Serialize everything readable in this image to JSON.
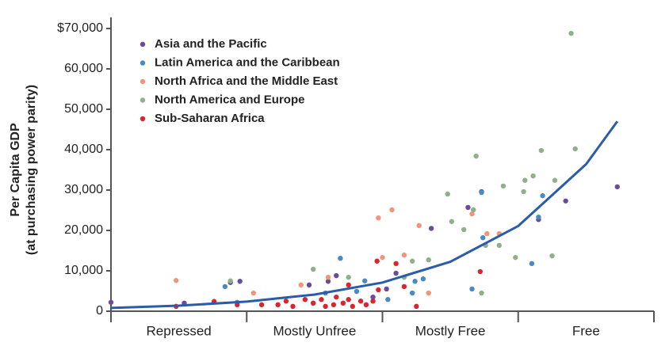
{
  "chart_data": {
    "type": "scatter",
    "y_label": [
      "Per Capita GDP",
      "(at purchasing power parity)"
    ],
    "categories": [
      "Repressed",
      "Mostly Unfree",
      "Mostly Free",
      "Free"
    ],
    "xlim": [
      0,
      4
    ],
    "ylim": [
      0,
      70000
    ],
    "yticks": [
      0,
      {
        "value": 10000,
        "label": "10,000"
      },
      {
        "value": 20000,
        "label": "20,000"
      },
      {
        "value": 30000,
        "label": "30,000"
      },
      {
        "value": 40000,
        "label": "40,000"
      },
      {
        "value": 50000,
        "label": "50,000"
      },
      {
        "value": 60000,
        "label": "60,000"
      },
      {
        "value": 70000,
        "label": "$70,000"
      }
    ],
    "series": [
      {
        "name": "Asia and the Pacific",
        "color": "#6a4c9c",
        "x": [
          0.0,
          0.54,
          0.95,
          0.88,
          1.6,
          1.93,
          1.66,
          2.36,
          2.63,
          2.73,
          3.15,
          3.35,
          3.73,
          2.03,
          2.1,
          1.46
        ],
        "values": [
          2200,
          2000,
          7400,
          7100,
          7400,
          3500,
          8800,
          20500,
          25700,
          29600,
          22700,
          27300,
          30800,
          5500,
          9400,
          6500
        ]
      },
      {
        "name": "Latin America and the Caribbean",
        "color": "#4a8ac0",
        "x": [
          0.84,
          0.93,
          1.69,
          1.81,
          2.04,
          2.24,
          2.22,
          2.3,
          2.66,
          2.74,
          3.1,
          3.18,
          3.15,
          2.73,
          1.87,
          1.58
        ],
        "values": [
          6100,
          2200,
          13100,
          4900,
          2900,
          7400,
          4500,
          8000,
          5500,
          18200,
          11800,
          28600,
          23300,
          29400,
          7500,
          4500
        ]
      },
      {
        "name": "North Africa and the Middle East",
        "color": "#f0957a",
        "x": [
          0.48,
          1.05,
          1.6,
          1.97,
          2.07,
          2.0,
          2.16,
          2.27,
          2.34,
          2.66,
          2.77,
          2.86,
          1.4
        ],
        "values": [
          7600,
          4500,
          8400,
          23100,
          25100,
          13300,
          13900,
          21200,
          4500,
          24100,
          19200,
          19200,
          6500
        ]
      },
      {
        "name": "North America and Europe",
        "color": "#8fb08a",
        "x": [
          0.88,
          1.49,
          1.75,
          2.16,
          2.22,
          2.48,
          2.51,
          2.6,
          2.69,
          2.67,
          2.76,
          2.86,
          2.89,
          3.04,
          3.05,
          3.11,
          3.17,
          3.27,
          3.25,
          3.39,
          3.42,
          2.98,
          2.73,
          2.34
        ],
        "values": [
          7500,
          10400,
          8400,
          8400,
          12400,
          29000,
          22200,
          20200,
          38400,
          25100,
          16300,
          16300,
          31000,
          29600,
          32400,
          33500,
          39800,
          32400,
          13700,
          68800,
          40200,
          13300,
          4500,
          12700
        ]
      },
      {
        "name": "Sub-Saharan Africa",
        "color": "#d9262e",
        "x": [
          0.48,
          0.76,
          1.11,
          1.23,
          1.29,
          1.34,
          1.43,
          1.49,
          1.55,
          1.58,
          1.64,
          1.66,
          1.71,
          1.75,
          1.78,
          1.84,
          1.88,
          1.93,
          1.97,
          1.96,
          2.1,
          2.16,
          2.25,
          2.72,
          1.75,
          0.93
        ],
        "values": [
          1200,
          2400,
          1600,
          1600,
          2500,
          1200,
          2900,
          2000,
          2900,
          1200,
          1600,
          3500,
          2000,
          2900,
          1200,
          2500,
          1600,
          2500,
          5300,
          12400,
          11800,
          6100,
          1200,
          9800,
          6500,
          1600
        ]
      }
    ],
    "trend": {
      "color": "#2a5caa",
      "x": [
        0,
        0.5,
        1,
        1.5,
        2,
        2.5,
        3,
        3.5,
        3.73
      ],
      "values": [
        800,
        1380,
        2380,
        4110,
        7090,
        12240,
        21100,
        36400,
        47000
      ]
    }
  }
}
